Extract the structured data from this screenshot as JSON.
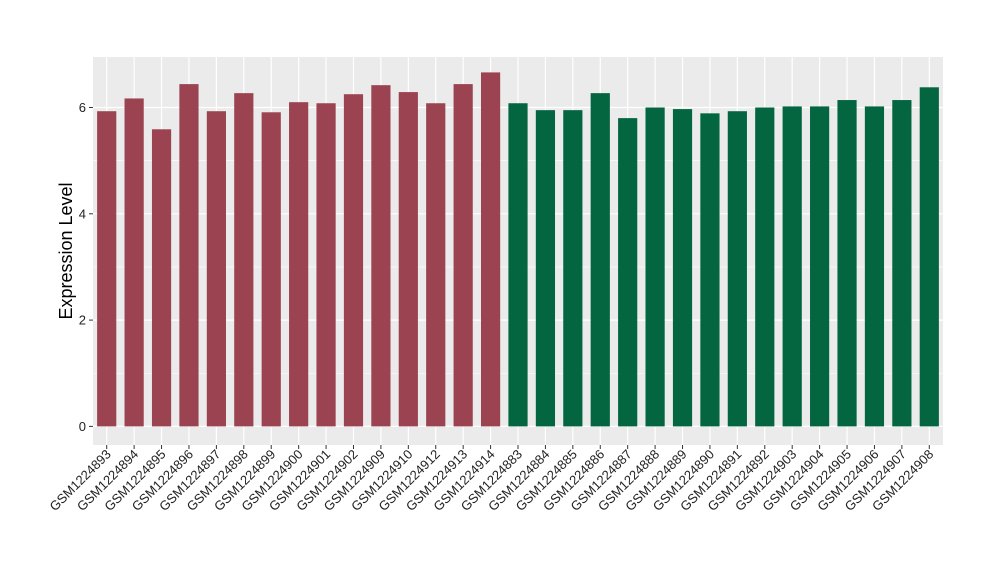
{
  "chart_data": {
    "type": "bar",
    "title": "",
    "xlabel": "",
    "ylabel": "Expression Level",
    "ylim": [
      -0.35,
      6.95
    ],
    "yticks": [
      0,
      2,
      4,
      6
    ],
    "grid": true,
    "legend": "none",
    "categories": [
      "GSM1224893",
      "GSM1224894",
      "GSM1224895",
      "GSM1224896",
      "GSM1224897",
      "GSM1224898",
      "GSM1224899",
      "GSM1224900",
      "GSM1224901",
      "GSM1224902",
      "GSM1224909",
      "GSM1224910",
      "GSM1224912",
      "GSM1224913",
      "GSM1224914",
      "GSM1224883",
      "GSM1224884",
      "GSM1224885",
      "GSM1224886",
      "GSM1224887",
      "GSM1224888",
      "GSM1224889",
      "GSM1224890",
      "GSM1224891",
      "GSM1224892",
      "GSM1224903",
      "GSM1224904",
      "GSM1224905",
      "GSM1224906",
      "GSM1224907",
      "GSM1224908"
    ],
    "values": [
      5.93,
      6.17,
      5.59,
      6.44,
      5.93,
      6.27,
      5.91,
      6.1,
      6.08,
      6.25,
      6.42,
      6.29,
      6.08,
      6.44,
      6.66,
      6.08,
      5.95,
      5.95,
      6.27,
      5.8,
      6.0,
      5.97,
      5.89,
      5.93,
      6.0,
      6.02,
      6.02,
      6.14,
      6.02,
      6.14,
      6.38
    ],
    "groups": [
      0,
      0,
      0,
      0,
      0,
      0,
      0,
      0,
      0,
      0,
      0,
      0,
      0,
      0,
      0,
      1,
      1,
      1,
      1,
      1,
      1,
      1,
      1,
      1,
      1,
      1,
      1,
      1,
      1,
      1,
      1
    ],
    "group_colors": [
      "#9b4350",
      "#036641"
    ],
    "panel_background": "#ebebeb",
    "grid_color": "#ffffff"
  }
}
